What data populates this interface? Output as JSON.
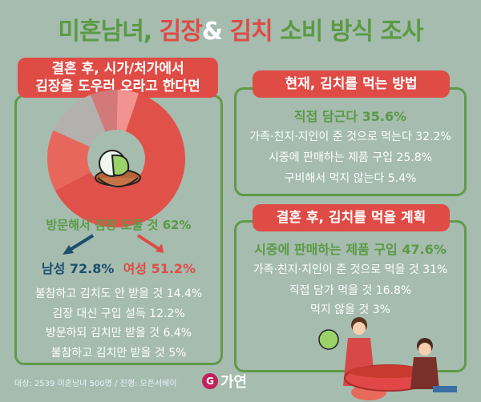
{
  "title": {
    "part1": "미혼남녀, ",
    "part2": "김장",
    "part3": "& ",
    "part4": "김치",
    "part5": " 소비 방식 조사"
  },
  "left_panel": {
    "tag_line1": "결혼 후, 시가/처가에서",
    "tag_line2": "김장을 도우러 오라고 한다면",
    "highlight": "방문해서 김장 도울 것  62%",
    "male": "남성 72.8%",
    "female": "여성 51.2%",
    "items": [
      "불참하고 김치도 안 받을 것  14.4%",
      "김장 대신 구입 설득  12.2%",
      "방문하되 김치만 받을 것  6.4%",
      "불참하고 김치만 받을 것  5%"
    ]
  },
  "right_top": {
    "tag": "현재, 김치를 먹는 방법",
    "highlight": "직접 담근다  35.6%",
    "items": [
      "가족·친지·지인이 준 것으로 먹는다 32.2%",
      "시중에 판매하는 제품 구입 25.8%",
      "구비해서 먹지 않는다  5.4%"
    ]
  },
  "right_bottom": {
    "tag": "결혼 후, 김치를 먹을 계획",
    "highlight": "시중에 판매하는 제품 구입  47.6%",
    "items": [
      "가족·친지·지인이 준 것으로 먹을 것  31%",
      "직접 담가 먹을 것  16.8%",
      "먹지 않을 것  3%"
    ]
  },
  "footer": "대상: 2539  미혼남녀 500명 / 진행: 오픈서베이",
  "logo": {
    "mark": "G",
    "text": "가연"
  },
  "colors": {
    "background": "#a5bcaf",
    "green": "#5b9a44",
    "red": "#df4b45",
    "male": "#1d4e6e"
  },
  "chart_data": {
    "type": "pie",
    "donut": true,
    "categories": [
      "불참하고 김치만 받을 것",
      "방문해서 김장 도울 것",
      "불참하고 김치도 안 받을 것",
      "김장 대신 구입 설득",
      "방문하되 김치만 받을 것"
    ],
    "values": [
      5,
      62,
      14.4,
      12.2,
      6.4
    ],
    "colors": [
      "#f29390",
      "#e0514a",
      "#e8675d",
      "#b3b1ae",
      "#d4797a"
    ]
  }
}
